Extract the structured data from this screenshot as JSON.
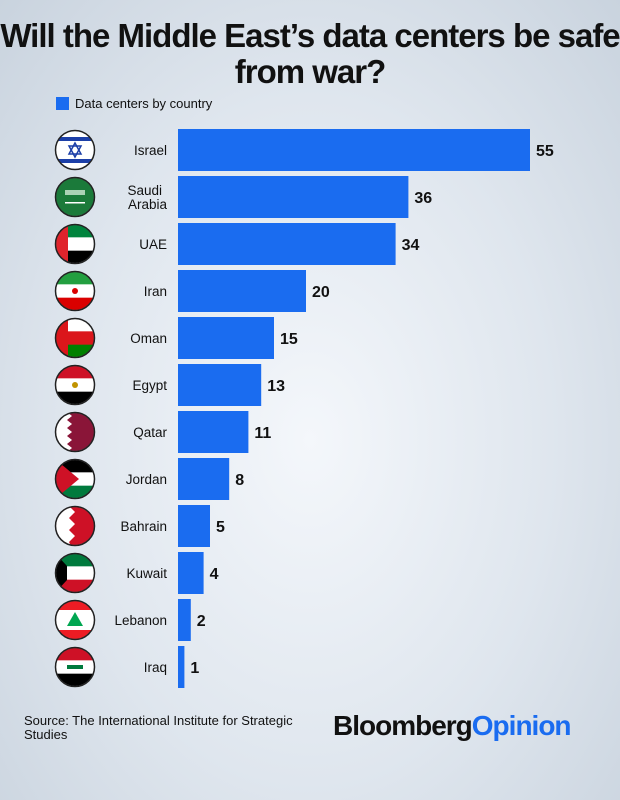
{
  "chart_data": {
    "type": "bar",
    "title": "Will the Middle East’s data centers be safe from war?",
    "legend": "Data centers by country",
    "categories": [
      "Israel",
      "Saudi Arabia",
      "UAE",
      "Iran",
      "Oman",
      "Egypt",
      "Qatar",
      "Jordan",
      "Bahrain",
      "Kuwait",
      "Lebanon",
      "Iraq"
    ],
    "values": [
      55,
      36,
      34,
      20,
      15,
      13,
      11,
      8,
      5,
      4,
      2,
      1
    ],
    "orientation": "horizontal",
    "xlim": [
      0,
      55
    ],
    "bar_color": "#1a6cf0",
    "grid": false
  },
  "source": "Source: The International Institute for Strategic Studies",
  "logo": {
    "part1": "Bloomberg",
    "part2": "Opinion"
  }
}
